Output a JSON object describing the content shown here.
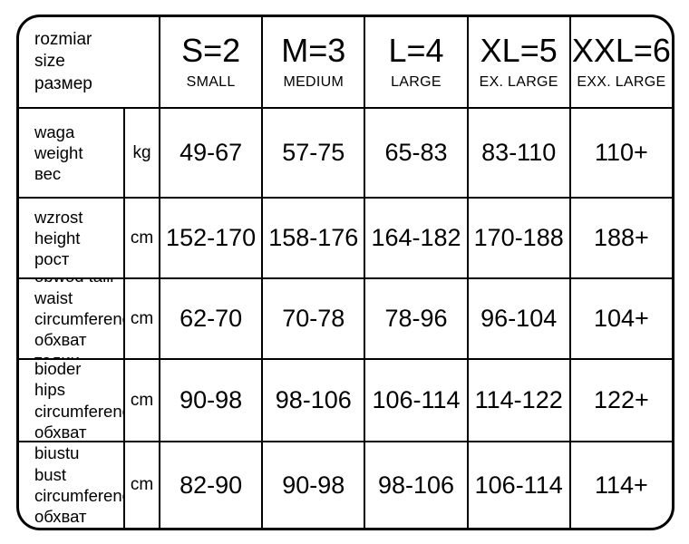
{
  "table": {
    "corner_lines": [
      "rozmiar",
      "size",
      "размер"
    ],
    "size_columns": [
      {
        "code": "S=2",
        "name": "SMALL"
      },
      {
        "code": "M=3",
        "name": "MEDIUM"
      },
      {
        "code": "L=4",
        "name": "LARGE"
      },
      {
        "code": "XL=5",
        "name": "EX. LARGE"
      },
      {
        "code": "XXL=6",
        "name": "EXX. LARGE"
      }
    ],
    "rows": [
      {
        "label_lines": [
          "waga",
          "weight",
          "вес"
        ],
        "unit": "kg",
        "values": [
          "49-67",
          "57-75",
          "65-83",
          "83-110",
          "110+"
        ]
      },
      {
        "label_lines": [
          "wzrost",
          "height",
          "рост"
        ],
        "unit": "cm",
        "values": [
          "152-170",
          "158-176",
          "164-182",
          "170-188",
          "188+"
        ]
      },
      {
        "label_lines": [
          "obwód talii",
          "waist",
          "circumference",
          "обхват талии"
        ],
        "unit": "cm",
        "values": [
          "62-70",
          "70-78",
          "78-96",
          "96-104",
          "104+"
        ]
      },
      {
        "label_lines": [
          "obwód bioder",
          "hips",
          "circumference",
          "обхват бедер"
        ],
        "unit": "cm",
        "values": [
          "90-98",
          "98-106",
          "106-114",
          "114-122",
          "122+"
        ]
      },
      {
        "label_lines": [
          "obwód biustu",
          "bust",
          "circumference",
          "обхват груди"
        ],
        "unit": "cm",
        "values": [
          "82-90",
          "90-98",
          "98-106",
          "106-114",
          "114+"
        ]
      }
    ]
  },
  "colors": {
    "border": "#000000",
    "background": "#ffffff",
    "text": "#000000"
  }
}
